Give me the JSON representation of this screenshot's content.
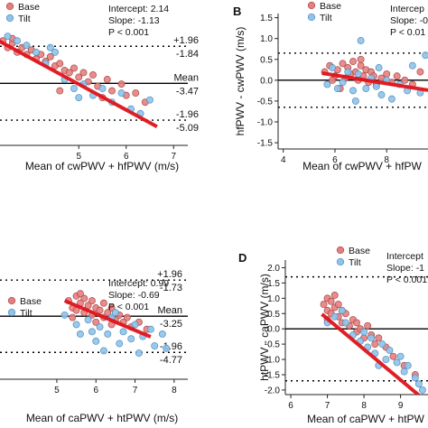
{
  "figure": {
    "legend": [
      "Base",
      "Tilt"
    ],
    "colors": {
      "base_fill": "#e57f7f",
      "base_edge": "#a94848",
      "tilt_fill": "#8fc3ea",
      "tilt_edge": "#4f8fbf",
      "regression": "#e0141b",
      "mean_line": "#000000",
      "limit_line": "#000000"
    },
    "marker_legend_labels": [
      "+1.96",
      "Mean",
      "-1.96"
    ]
  },
  "chart_data": [
    {
      "type": "scatter",
      "panel_label": "",
      "xlabel": "Mean of cwPWV + hfPWV (m/s)",
      "ylabel": "",
      "xlim": [
        3.3,
        7.3
      ],
      "ylim": [
        -6.2,
        -0.4
      ],
      "xticks": [
        5,
        6,
        7
      ],
      "yticks": [],
      "stats": [
        "Intercept: 2.14",
        "Slope: -1.13",
        "P < 0.001"
      ],
      "bands": {
        "upper": -1.84,
        "mean": -3.47,
        "lower": -5.09
      },
      "band_labels": {
        "upper": [
          "+1.96",
          "-1.84"
        ],
        "mean": [
          "Mean",
          "-3.47"
        ],
        "lower": [
          "-1.96",
          "-5.09"
        ]
      },
      "regression": {
        "intercept": 2.14,
        "slope": -1.13,
        "x_range": [
          3.3,
          6.65
        ]
      },
      "series": [
        {
          "name": "Base",
          "points": [
            [
              3.4,
              -1.6
            ],
            [
              3.5,
              -1.9
            ],
            [
              3.6,
              -1.7
            ],
            [
              3.7,
              -2.1
            ],
            [
              3.8,
              -1.9
            ],
            [
              3.9,
              -2.2
            ],
            [
              4.0,
              -2.0
            ],
            [
              4.1,
              -2.4
            ],
            [
              4.2,
              -2.2
            ],
            [
              4.3,
              -2.5
            ],
            [
              4.4,
              -2.3
            ],
            [
              4.5,
              -2.7
            ],
            [
              4.6,
              -2.6
            ],
            [
              4.7,
              -2.9
            ],
            [
              4.8,
              -3.0
            ],
            [
              4.9,
              -2.8
            ],
            [
              5.0,
              -3.2
            ],
            [
              5.1,
              -3.0
            ],
            [
              5.2,
              -3.4
            ],
            [
              5.3,
              -3.1
            ],
            [
              5.4,
              -3.6
            ],
            [
              5.6,
              -3.3
            ],
            [
              5.7,
              -3.8
            ],
            [
              5.9,
              -3.5
            ],
            [
              6.0,
              -4.0
            ],
            [
              6.2,
              -3.9
            ],
            [
              6.4,
              -4.3
            ],
            [
              5.5,
              -4.1
            ],
            [
              4.6,
              -3.8
            ],
            [
              3.6,
              -1.5
            ]
          ]
        },
        {
          "name": "Tilt",
          "points": [
            [
              3.5,
              -1.4
            ],
            [
              3.7,
              -1.6
            ],
            [
              3.9,
              -1.8
            ],
            [
              4.1,
              -2.1
            ],
            [
              4.3,
              -2.6
            ],
            [
              4.5,
              -2.1
            ],
            [
              4.7,
              -3.3
            ],
            [
              4.9,
              -3.7
            ],
            [
              5.1,
              -3.5
            ],
            [
              5.3,
              -4.0
            ],
            [
              5.5,
              -3.7
            ],
            [
              5.7,
              -4.3
            ],
            [
              5.9,
              -3.9
            ],
            [
              6.1,
              -4.6
            ],
            [
              6.5,
              -4.2
            ],
            [
              6.3,
              -4.8
            ],
            [
              5.0,
              -4.1
            ],
            [
              4.4,
              -1.9
            ]
          ]
        }
      ]
    },
    {
      "type": "scatter",
      "panel_label": "B",
      "xlabel": "Mean of cwPWV + hfPW",
      "ylabel": "hfPWV - cwPWV (m/s)",
      "xlim": [
        3.8,
        9.6
      ],
      "ylim": [
        -1.65,
        1.6
      ],
      "xticks": [
        4,
        6,
        8
      ],
      "yticks": [
        -1.5,
        -1.0,
        -0.5,
        0.0,
        0.5,
        1.0,
        1.5
      ],
      "stats": [
        "Intercep",
        "Slope: -0",
        "P < 0.01"
      ],
      "bands": {
        "upper": 0.65,
        "mean": 0.0,
        "lower": -0.65
      },
      "band_labels": null,
      "regression": {
        "intercept": 0.72,
        "slope": -0.1,
        "x_range": [
          5.5,
          9.6
        ]
      },
      "series": [
        {
          "name": "Base",
          "points": [
            [
              5.6,
              0.2
            ],
            [
              5.8,
              0.35
            ],
            [
              6.0,
              0.1
            ],
            [
              6.1,
              0.25
            ],
            [
              6.3,
              0.4
            ],
            [
              6.4,
              0.05
            ],
            [
              6.5,
              0.3
            ],
            [
              6.6,
              0.15
            ],
            [
              6.7,
              0.45
            ],
            [
              6.8,
              0.2
            ],
            [
              6.9,
              0.0
            ],
            [
              7.0,
              0.35
            ],
            [
              7.1,
              0.1
            ],
            [
              7.2,
              0.25
            ],
            [
              7.3,
              -0.05
            ],
            [
              7.4,
              0.2
            ],
            [
              7.5,
              0.1
            ],
            [
              7.6,
              -0.1
            ],
            [
              7.8,
              0.05
            ],
            [
              8.0,
              0.15
            ],
            [
              8.2,
              -0.05
            ],
            [
              8.4,
              0.1
            ],
            [
              8.7,
              0.0
            ],
            [
              9.0,
              -0.1
            ],
            [
              9.3,
              0.2
            ],
            [
              6.2,
              -0.2
            ],
            [
              7.0,
              0.5
            ],
            [
              5.9,
              0.0
            ]
          ]
        },
        {
          "name": "Tilt",
          "points": [
            [
              5.7,
              -0.1
            ],
            [
              5.9,
              0.3
            ],
            [
              6.1,
              -0.2
            ],
            [
              6.3,
              -0.05
            ],
            [
              6.5,
              0.2
            ],
            [
              6.7,
              -0.25
            ],
            [
              6.9,
              0.15
            ],
            [
              7.0,
              0.95
            ],
            [
              7.2,
              -0.2
            ],
            [
              7.4,
              0.05
            ],
            [
              7.6,
              -0.15
            ],
            [
              7.8,
              -0.35
            ],
            [
              8.0,
              0.0
            ],
            [
              8.2,
              -0.45
            ],
            [
              8.5,
              -0.1
            ],
            [
              8.8,
              -0.25
            ],
            [
              9.0,
              0.35
            ],
            [
              9.3,
              -0.3
            ],
            [
              6.8,
              -0.5
            ],
            [
              7.7,
              0.3
            ],
            [
              9.5,
              0.6
            ]
          ]
        }
      ]
    },
    {
      "type": "scatter",
      "panel_label": "",
      "xlabel": "Mean of caPWV + htPWV (m/s)",
      "ylabel": "",
      "xlim": [
        3.5,
        8.35
      ],
      "ylim": [
        -5.9,
        -0.85
      ],
      "xticks": [
        5,
        6,
        7,
        8
      ],
      "yticks": [],
      "stats": [
        "Intercept: 0.99",
        "Slope: -0.69",
        "P < 0.001"
      ],
      "bands": {
        "upper": -1.73,
        "mean": -3.25,
        "lower": -4.77
      },
      "band_labels": {
        "upper": [
          "+1.96",
          "-1.73"
        ],
        "mean": [
          "Mean",
          "-3.25"
        ],
        "lower": [
          "-1.96",
          "-4.77"
        ]
      },
      "regression": {
        "intercept": 0.99,
        "slope": -0.69,
        "x_range": [
          5.2,
          7.4
        ]
      },
      "series": [
        {
          "name": "Base",
          "points": [
            [
              5.3,
              -2.6
            ],
            [
              5.4,
              -2.9
            ],
            [
              5.5,
              -2.4
            ],
            [
              5.5,
              -3.0
            ],
            [
              5.6,
              -2.7
            ],
            [
              5.7,
              -2.5
            ],
            [
              5.7,
              -3.1
            ],
            [
              5.8,
              -2.8
            ],
            [
              5.9,
              -2.6
            ],
            [
              5.9,
              -3.2
            ],
            [
              6.0,
              -2.9
            ],
            [
              6.1,
              -3.0
            ],
            [
              6.2,
              -2.7
            ],
            [
              6.2,
              -3.3
            ],
            [
              6.3,
              -3.1
            ],
            [
              6.4,
              -2.9
            ],
            [
              6.5,
              -3.4
            ],
            [
              6.6,
              -3.2
            ],
            [
              6.7,
              -3.5
            ],
            [
              6.8,
              -3.3
            ],
            [
              6.9,
              -3.7
            ],
            [
              7.1,
              -3.5
            ],
            [
              7.3,
              -3.8
            ],
            [
              5.6,
              -2.3
            ],
            [
              6.0,
              -3.5
            ],
            [
              5.4,
              -3.3
            ],
            [
              6.4,
              -3.6
            ]
          ]
        },
        {
          "name": "Tilt",
          "points": [
            [
              5.2,
              -3.2
            ],
            [
              5.5,
              -3.6
            ],
            [
              5.6,
              -4.0
            ],
            [
              5.8,
              -3.4
            ],
            [
              6.0,
              -4.3
            ],
            [
              6.1,
              -3.7
            ],
            [
              6.3,
              -4.0
            ],
            [
              6.4,
              -3.3
            ],
            [
              6.6,
              -4.4
            ],
            [
              6.7,
              -3.9
            ],
            [
              6.9,
              -4.2
            ],
            [
              7.0,
              -3.6
            ],
            [
              7.2,
              -4.1
            ],
            [
              7.4,
              -3.8
            ],
            [
              7.5,
              -4.5
            ],
            [
              7.7,
              -4.0
            ],
            [
              7.8,
              -4.6
            ],
            [
              6.2,
              -4.7
            ],
            [
              5.9,
              -3.9
            ],
            [
              7.1,
              -4.8
            ],
            [
              6.5,
              -3.1
            ]
          ]
        }
      ]
    },
    {
      "type": "scatter",
      "panel_label": "D",
      "xlabel": "Mean of caPWV + htPW",
      "ylabel": "htPWV - caPWV (m/s)",
      "xlim": [
        5.85,
        9.75
      ],
      "ylim": [
        -2.15,
        2.25
      ],
      "xticks": [
        6,
        7,
        8,
        9
      ],
      "yticks": [
        -2.0,
        -1.5,
        -1.0,
        -0.5,
        0.0,
        0.5,
        1.0,
        1.5,
        2.0
      ],
      "stats": [
        "Intercept",
        "Slope: -1",
        "P < 0.001"
      ],
      "bands": {
        "upper": 1.7,
        "mean": 0.0,
        "lower": -1.7
      },
      "band_labels": null,
      "regression": {
        "intercept": 7.33,
        "slope": -1.0,
        "x_range": [
          6.85,
          9.75
        ]
      },
      "series": [
        {
          "name": "Base",
          "points": [
            [
              6.9,
              0.8
            ],
            [
              7.0,
              1.0
            ],
            [
              7.0,
              0.6
            ],
            [
              7.1,
              0.9
            ],
            [
              7.1,
              0.5
            ],
            [
              7.2,
              0.7
            ],
            [
              7.2,
              1.1
            ],
            [
              7.3,
              0.4
            ],
            [
              7.3,
              0.8
            ],
            [
              7.4,
              0.6
            ],
            [
              7.4,
              0.2
            ],
            [
              7.5,
              0.5
            ],
            [
              7.6,
              0.1
            ],
            [
              7.7,
              0.3
            ],
            [
              7.8,
              -0.1
            ],
            [
              7.8,
              0.2
            ],
            [
              7.9,
              0.0
            ],
            [
              8.0,
              -0.3
            ],
            [
              8.1,
              0.1
            ],
            [
              8.2,
              -0.2
            ],
            [
              8.3,
              -0.5
            ],
            [
              8.4,
              -0.3
            ],
            [
              8.6,
              -0.6
            ],
            [
              8.8,
              -0.9
            ],
            [
              9.1,
              -1.2
            ],
            [
              9.4,
              -1.5
            ],
            [
              7.0,
              0.3
            ]
          ]
        },
        {
          "name": "Tilt",
          "points": [
            [
              7.0,
              0.2
            ],
            [
              7.2,
              0.4
            ],
            [
              7.5,
              0.2
            ],
            [
              7.7,
              -0.2
            ],
            [
              7.9,
              -0.4
            ],
            [
              8.0,
              -0.1
            ],
            [
              8.1,
              -0.6
            ],
            [
              8.2,
              -0.3
            ],
            [
              8.3,
              -0.8
            ],
            [
              8.5,
              -0.5
            ],
            [
              8.6,
              -1.0
            ],
            [
              8.7,
              -0.7
            ],
            [
              8.9,
              -1.1
            ],
            [
              9.0,
              -0.9
            ],
            [
              9.1,
              -1.4
            ],
            [
              9.2,
              -1.2
            ],
            [
              9.4,
              -1.6
            ],
            [
              9.5,
              -1.8
            ],
            [
              8.4,
              -1.2
            ],
            [
              7.4,
              0.6
            ],
            [
              9.6,
              -2.0
            ]
          ]
        }
      ]
    }
  ]
}
